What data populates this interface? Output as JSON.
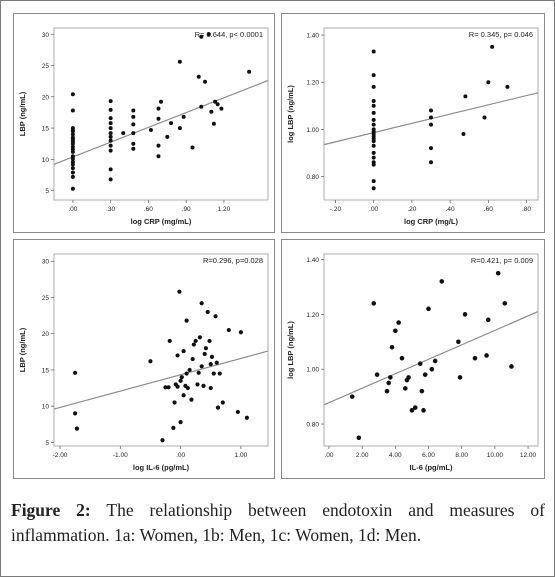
{
  "chart_data": [
    {
      "id": "1a",
      "type": "scatter",
      "xlabel": "log CRP (mg/mL)",
      "ylabel": "LBP (ng/mL)",
      "annotation": "R= 0.644, p< 0.0001",
      "xlim": [
        -0.15,
        1.55
      ],
      "ylim": [
        3.5,
        31
      ],
      "xticks": [
        0.0,
        0.3,
        0.6,
        0.9,
        1.2
      ],
      "xtick_labels": [
        ".00",
        ".30",
        ".60",
        ".90",
        "1.20"
      ],
      "yticks": [
        5,
        10,
        15,
        20,
        25,
        30
      ],
      "yticks_label": [
        "5",
        "10",
        "15",
        "20",
        "25",
        "30"
      ],
      "fit": {
        "x": [
          -0.15,
          1.55
        ],
        "y": [
          9.2,
          22.6
        ]
      },
      "points": {
        "x": [
          0.0,
          0.0,
          0.0,
          0.0,
          0.0,
          0.0,
          0.0,
          0.0,
          0.0,
          0.0,
          0.0,
          0.0,
          0.0,
          0.0,
          0.0,
          0.0,
          0.0,
          0.0,
          0.0,
          0.0,
          0.0,
          0.0,
          0.3,
          0.3,
          0.3,
          0.3,
          0.3,
          0.3,
          0.3,
          0.3,
          0.3,
          0.3,
          0.3,
          0.3,
          0.4,
          0.48,
          0.48,
          0.48,
          0.48,
          0.48,
          0.48,
          0.62,
          0.68,
          0.68,
          0.68,
          0.68,
          0.7,
          0.75,
          0.78,
          0.85,
          0.85,
          0.88,
          0.95,
          1.0,
          1.02,
          1.02,
          1.05,
          1.08,
          1.1,
          1.12,
          1.13,
          1.15,
          1.18,
          1.4
        ],
        "y": [
          5.3,
          7.2,
          7.9,
          8.6,
          9.2,
          9.6,
          10.1,
          10.5,
          11.2,
          12.0,
          12.5,
          13.0,
          13.5,
          14.0,
          14.5,
          14.7,
          15.0,
          13.3,
          12.8,
          11.6,
          17.8,
          20.4,
          6.8,
          8.4,
          11.4,
          12.2,
          13.0,
          13.6,
          14.2,
          15.0,
          15.8,
          16.6,
          17.9,
          19.3,
          14.2,
          11.7,
          12.5,
          14.2,
          15.6,
          16.8,
          17.8,
          14.7,
          10.5,
          12.2,
          16.5,
          18.1,
          19.2,
          13.6,
          15.8,
          15.0,
          25.6,
          16.8,
          11.9,
          23.2,
          29.6,
          18.4,
          22.4,
          30.0,
          17.6,
          15.7,
          19.2,
          18.8,
          18.1,
          24.0
        ]
      }
    },
    {
      "id": "1b",
      "type": "scatter",
      "xlabel": "log CRP (mg/L)",
      "ylabel": "log LBP (ng/mL)",
      "annotation": "R= 0.345, p= 0.046",
      "xlim": [
        -0.26,
        0.86
      ],
      "ylim": [
        0.7,
        1.43
      ],
      "xticks": [
        -0.2,
        0.0,
        0.2,
        0.4,
        0.6,
        0.8
      ],
      "xtick_labels": [
        "-.20",
        ".00",
        ".20",
        ".40",
        ".60",
        ".80"
      ],
      "yticks": [
        0.8,
        1.0,
        1.2,
        1.4
      ],
      "ytick_labels": [
        "0.80",
        "1.00",
        "1.20",
        "1.40"
      ],
      "fit": {
        "x": [
          -0.26,
          0.86
        ],
        "y": [
          0.935,
          1.155
        ]
      },
      "points": {
        "x": [
          0.0,
          0.0,
          0.0,
          0.0,
          0.0,
          0.0,
          0.0,
          0.0,
          0.0,
          0.0,
          0.0,
          0.0,
          0.0,
          0.0,
          0.0,
          0.0,
          0.0,
          0.0,
          0.0,
          0.0,
          0.0,
          0.3,
          0.3,
          0.3,
          0.3,
          0.3,
          0.47,
          0.48,
          0.58,
          0.6,
          0.62,
          0.7
        ],
        "y": [
          0.75,
          0.78,
          0.85,
          0.86,
          0.88,
          0.9,
          0.93,
          0.95,
          0.96,
          0.97,
          0.98,
          0.99,
          1.0,
          1.02,
          1.04,
          1.07,
          1.1,
          1.12,
          1.18,
          1.23,
          1.33,
          0.86,
          0.92,
          1.02,
          1.05,
          1.08,
          0.98,
          1.14,
          1.05,
          1.2,
          1.35,
          1.18
        ]
      }
    },
    {
      "id": "1c",
      "type": "scatter",
      "xlabel": "log IL-6 (pg/mL)",
      "ylabel": "LBP (ng/mL)",
      "annotation": "R=0.296, p=0.028",
      "xlim": [
        -2.1,
        1.45
      ],
      "ylim": [
        4.5,
        31
      ],
      "xticks": [
        -2.0,
        -1.0,
        0.0,
        1.0
      ],
      "xtick_labels": [
        "-2.00",
        "-1.00",
        ".00",
        "1.00"
      ],
      "yticks": [
        5,
        10,
        15,
        20,
        25,
        30
      ],
      "ytick_labels": [
        "5",
        "10",
        "15",
        "20",
        "25",
        "30"
      ],
      "fit": {
        "x": [
          -2.1,
          1.45
        ],
        "y": [
          9.6,
          17.6
        ]
      },
      "points": {
        "x": [
          -1.75,
          -1.75,
          -1.72,
          -0.5,
          -0.3,
          -0.25,
          -0.2,
          -0.18,
          -0.12,
          -0.1,
          -0.08,
          -0.05,
          -0.05,
          -0.02,
          0.0,
          0.0,
          0.02,
          0.05,
          0.05,
          0.08,
          0.1,
          0.1,
          0.12,
          0.15,
          0.18,
          0.2,
          0.22,
          0.25,
          0.28,
          0.3,
          0.32,
          0.35,
          0.35,
          0.38,
          0.4,
          0.42,
          0.45,
          0.48,
          0.5,
          0.5,
          0.52,
          0.55,
          0.58,
          0.6,
          0.62,
          0.65,
          0.7,
          0.8,
          0.95,
          1.0,
          1.1
        ],
        "y": [
          14.6,
          9.0,
          6.9,
          16.2,
          5.3,
          12.6,
          12.6,
          19.0,
          7.0,
          10.5,
          13.0,
          12.7,
          17.0,
          25.8,
          7.8,
          13.5,
          14.0,
          11.5,
          17.6,
          12.8,
          14.5,
          21.8,
          12.5,
          15.0,
          10.9,
          16.5,
          18.5,
          19.0,
          13.0,
          14.6,
          19.5,
          15.5,
          24.2,
          12.8,
          17.2,
          18.0,
          23.0,
          19.0,
          12.5,
          15.8,
          16.8,
          14.5,
          22.4,
          16.0,
          9.8,
          14.5,
          10.5,
          20.5,
          9.2,
          20.2,
          8.4
        ]
      }
    },
    {
      "id": "1d",
      "type": "scatter",
      "xlabel": "IL-6 (pg/mL)",
      "ylabel": "log LBP (ng/mL)",
      "annotation": "R=0.421, p= 0.009",
      "xlim": [
        -0.3,
        12.6
      ],
      "ylim": [
        0.72,
        1.42
      ],
      "xticks": [
        0,
        2,
        4,
        6,
        8,
        10,
        12
      ],
      "xtick_labels": [
        ".00",
        "2.00",
        "4.00",
        "6.00",
        "8.00",
        "10.00",
        "12.00"
      ],
      "yticks": [
        0.8,
        1.0,
        1.2,
        1.4
      ],
      "ytick_labels": [
        "0.80",
        "1.00",
        "1.20",
        "1.40"
      ],
      "fit": {
        "x": [
          -0.3,
          12.6
        ],
        "y": [
          0.87,
          1.21
        ]
      },
      "points": {
        "x": [
          1.4,
          1.8,
          2.7,
          2.9,
          3.5,
          3.6,
          3.7,
          3.8,
          4.0,
          4.2,
          4.4,
          4.6,
          4.7,
          4.8,
          5.0,
          5.2,
          5.5,
          5.6,
          5.7,
          5.8,
          6.0,
          6.2,
          6.4,
          6.8,
          7.8,
          7.9,
          8.2,
          8.8,
          9.5,
          9.6,
          10.2,
          10.6,
          11.0
        ],
        "y": [
          0.9,
          0.75,
          1.24,
          0.98,
          0.92,
          0.95,
          0.97,
          1.08,
          1.14,
          1.17,
          1.04,
          0.93,
          0.96,
          0.97,
          0.85,
          0.86,
          1.02,
          0.92,
          0.85,
          0.98,
          1.22,
          1.0,
          1.03,
          1.32,
          1.1,
          0.97,
          1.2,
          1.04,
          1.05,
          1.18,
          1.35,
          1.24,
          1.01
        ]
      }
    }
  ],
  "caption": {
    "label": "Figure 2:",
    "text": " The relationship between endotoxin and measures of inflammation. 1a: Women, 1b: Men, 1c: Women, 1d: Men."
  }
}
